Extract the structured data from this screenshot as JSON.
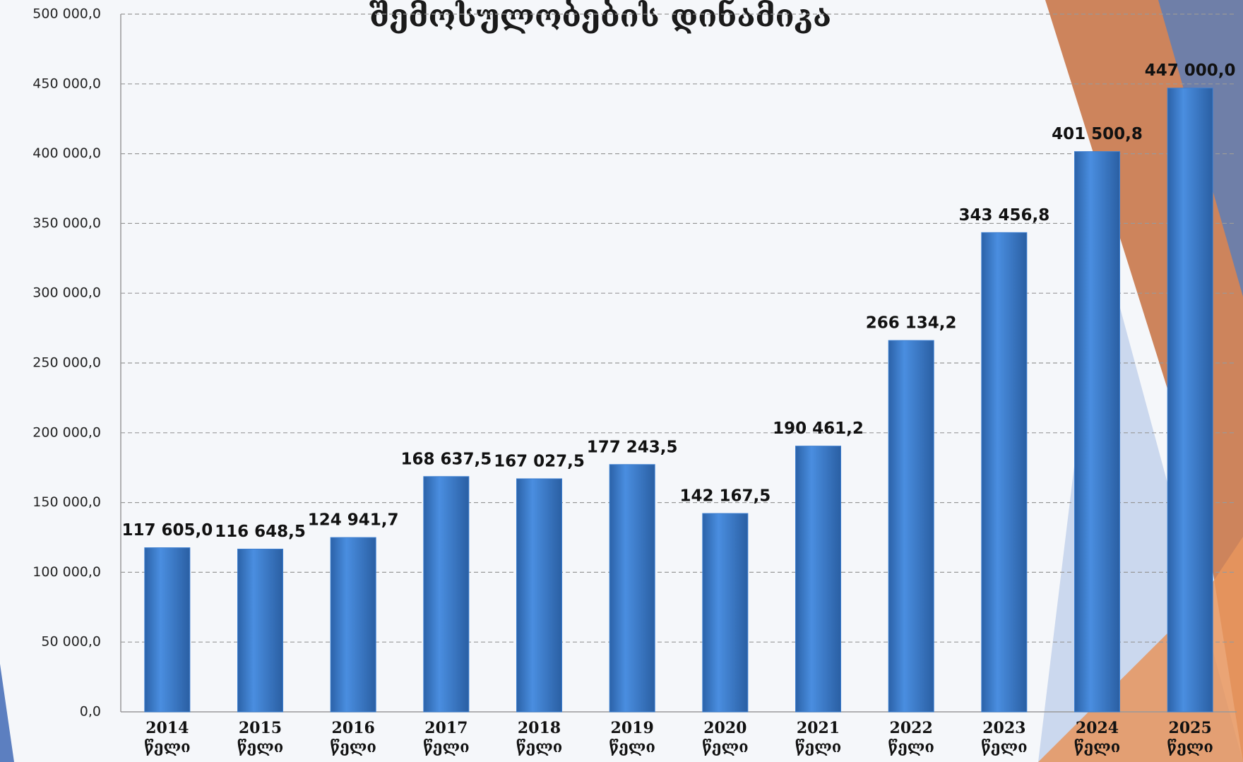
{
  "chart_data": {
    "type": "bar",
    "title": "შემოსულობების დინამიკა",
    "categories": [
      "2014 წელი",
      "2015 წელი",
      "2016 წელი",
      "2017 წელი",
      "2018 წელი",
      "2019 წელი",
      "2020 წელი",
      "2021 წელი",
      "2022 წელი",
      "2023 წელი",
      "2024 წელი",
      "2025 წელი"
    ],
    "values": [
      117605.0,
      116648.5,
      124941.7,
      168637.5,
      167027.5,
      177243.5,
      142167.5,
      190461.2,
      266134.2,
      343456.8,
      401500.8,
      447000.0
    ],
    "value_labels": [
      "117 605,0",
      "116 648,5",
      "124 941,7",
      "168 637,5",
      "167 027,5",
      "177 243,5",
      "142 167,5",
      "190 461,2",
      "266 134,2",
      "343 456,8",
      "401 500,8",
      "447 000,0"
    ],
    "color": "#3d7fd0",
    "ylim": [
      0,
      500000
    ],
    "yticks": [
      {
        "value": 0,
        "label": "0,0"
      },
      {
        "value": 50000,
        "label": "50 000,0"
      },
      {
        "value": 100000,
        "label": "100 000,0"
      },
      {
        "value": 150000,
        "label": "150 000,0"
      },
      {
        "value": 200000,
        "label": "200 000,0"
      },
      {
        "value": 250000,
        "label": "250 000,0"
      },
      {
        "value": 300000,
        "label": "300 000,0"
      },
      {
        "value": 350000,
        "label": "350 000,0"
      },
      {
        "value": 400000,
        "label": "400 000,0"
      },
      {
        "value": 450000,
        "label": "450 000,0"
      },
      {
        "value": 500000,
        "label": "500 000,0"
      }
    ],
    "grid": true
  }
}
